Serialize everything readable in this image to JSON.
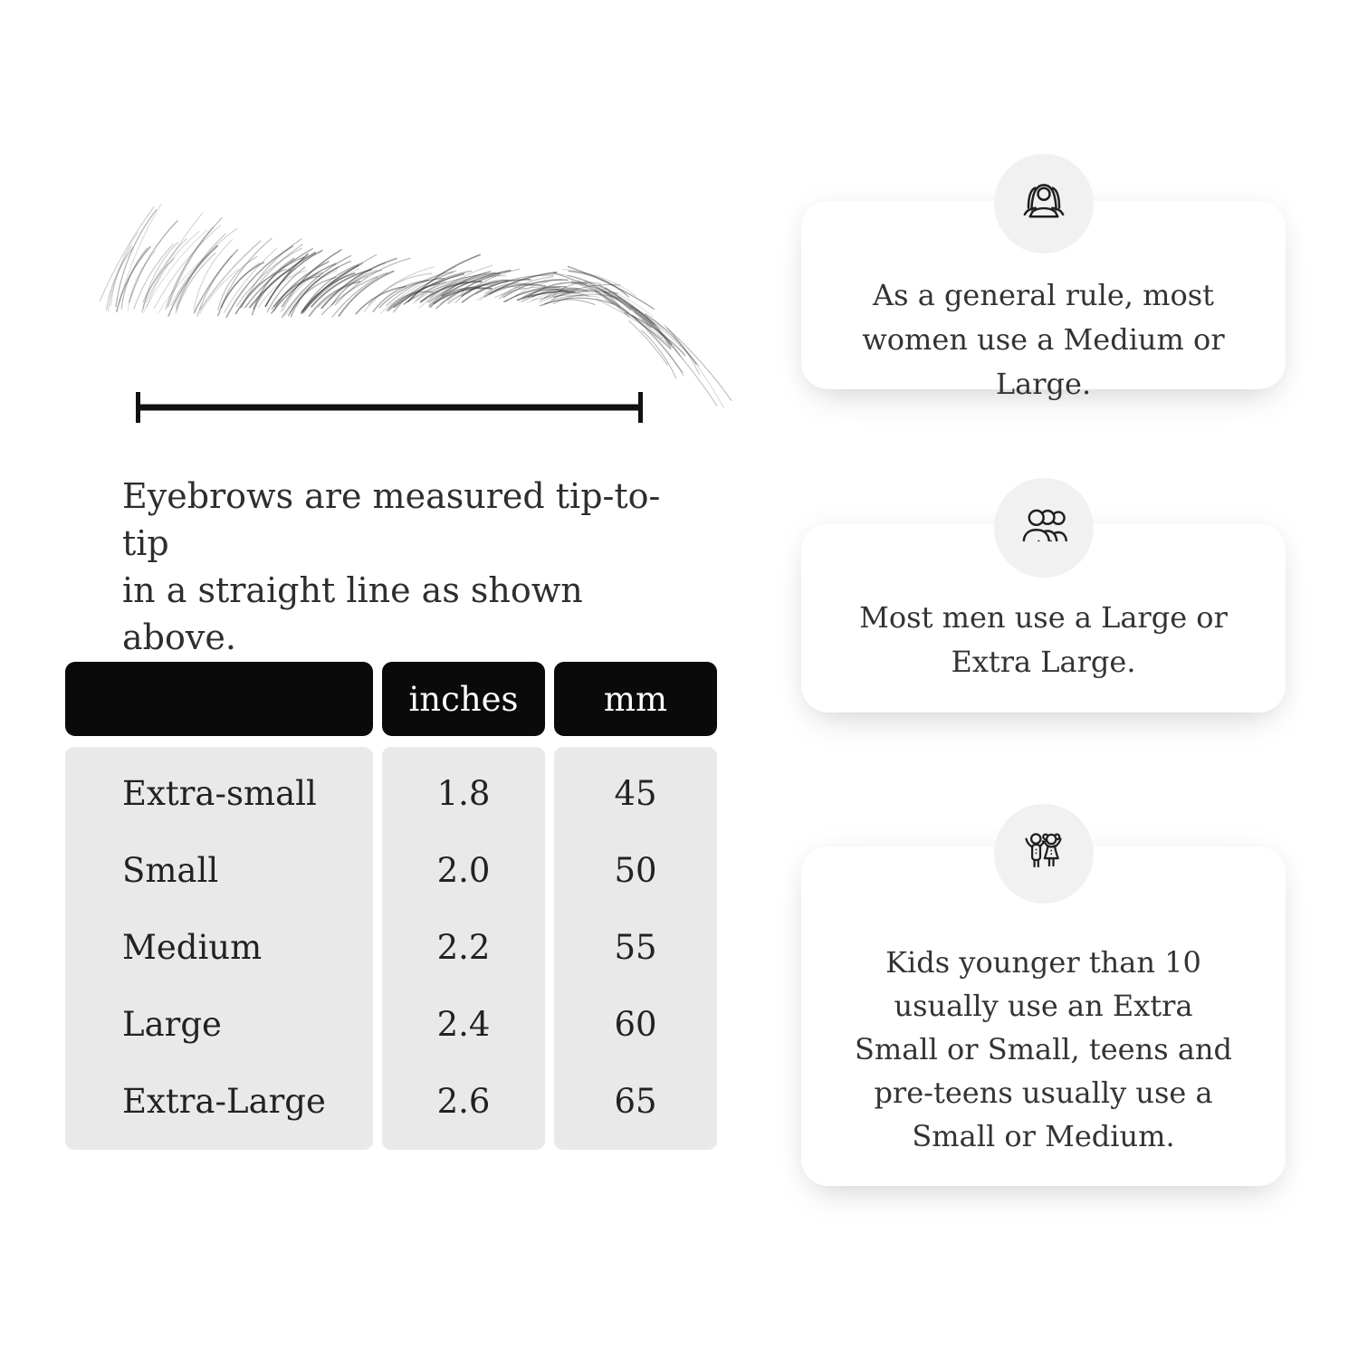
{
  "figure": {
    "caption_lines": [
      "Eyebrows are measured tip-to-tip",
      "in a straight line as shown above."
    ]
  },
  "size_table": {
    "headers": {
      "label": "",
      "inches": "inches",
      "mm": "mm"
    },
    "rows": [
      {
        "label": "Extra-small",
        "inches": "1.8",
        "mm": "45"
      },
      {
        "label": "Small",
        "inches": "2.0",
        "mm": "50"
      },
      {
        "label": "Medium",
        "inches": "2.2",
        "mm": "55"
      },
      {
        "label": "Large",
        "inches": "2.4",
        "mm": "60"
      },
      {
        "label": "Extra-Large",
        "inches": "2.6",
        "mm": "65"
      }
    ]
  },
  "info_cards": [
    {
      "icon": "women-group-icon",
      "text": "As a general rule, most women use a Medium or Large."
    },
    {
      "icon": "men-group-icon",
      "text": "Most men use a Large or Extra Large."
    },
    {
      "icon": "kids-icon",
      "text": "Kids younger than 10 usually use an Extra Small or Small, teens and pre-teens usually use a Small or Medium."
    }
  ],
  "colors": {
    "header_bg": "#0a0a0a",
    "header_text": "#ffffff",
    "body_bg": "#e9e9e9",
    "card_bg": "#ffffff",
    "icon_circle_bg": "#f1f1f1",
    "text": "#2b2b2b"
  }
}
